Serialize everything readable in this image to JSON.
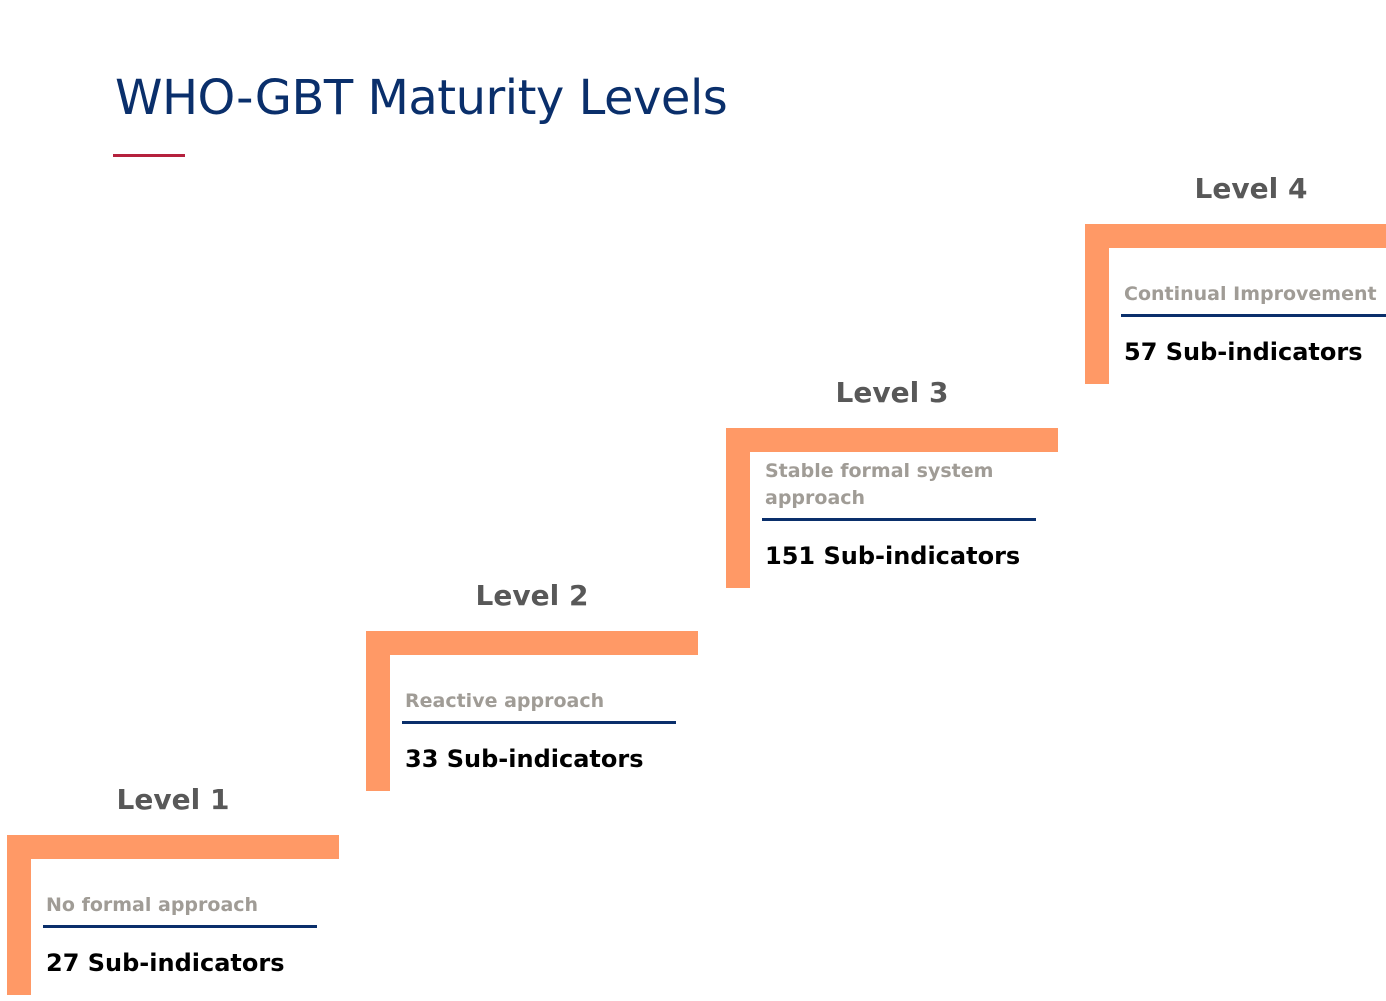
{
  "title": "WHO-GBT Maturity Levels",
  "colors": {
    "title": "#0a2f6b",
    "accent": "#b5213d",
    "step": "#ff9966",
    "rule": "#0a2f6b"
  },
  "levels": [
    {
      "label": "Level 1",
      "description": "No formal approach",
      "count": "27 Sub-indicators"
    },
    {
      "label": "Level 2",
      "description": "Reactive approach",
      "count": "33 Sub-indicators"
    },
    {
      "label": "Level 3",
      "description": "Stable formal system approach",
      "count": "151 Sub-indicators"
    },
    {
      "label": "Level 4",
      "description": "Continual Improvement",
      "count": "57 Sub-indicators"
    }
  ]
}
